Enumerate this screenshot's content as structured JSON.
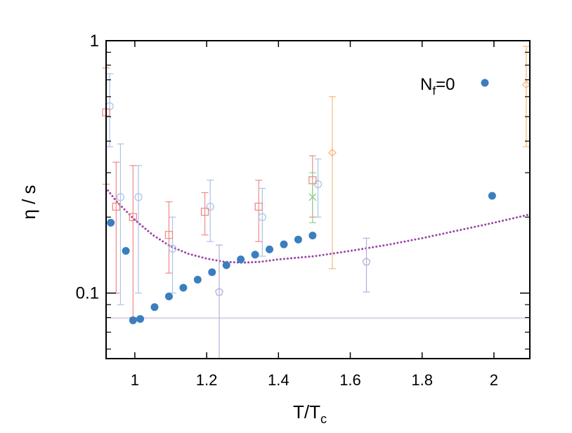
{
  "chart_data": {
    "type": "scatter",
    "xlabel": "T/T",
    "xlabel_sub": "c",
    "ylabel": "η / s",
    "xlim": [
      0.92,
      2.1
    ],
    "ylim": [
      0.055,
      1.0
    ],
    "yscale": "log",
    "x_ticks": [
      1,
      1.2,
      1.4,
      1.6,
      1.8,
      2
    ],
    "x_tick_labels": [
      "1",
      "1.2",
      "1.4",
      "1.6",
      "1.8",
      "2"
    ],
    "y_ticks": [
      0.1,
      1
    ],
    "y_tick_labels": [
      "0.1",
      "1"
    ],
    "legend": {
      "label_main": "N",
      "label_sub": "f",
      "label_rest": "=0",
      "position": "top-right"
    },
    "series": [
      {
        "name": "N_f=0",
        "marker": "filled-circle",
        "color": "#3a7ebf",
        "points": [
          [
            0.933,
            0.19
          ],
          [
            0.975,
            0.147
          ],
          [
            0.995,
            0.078
          ],
          [
            1.015,
            0.079
          ],
          [
            1.055,
            0.088
          ],
          [
            1.095,
            0.097
          ],
          [
            1.135,
            0.105
          ],
          [
            1.175,
            0.113
          ],
          [
            1.215,
            0.121
          ],
          [
            1.255,
            0.129
          ],
          [
            1.295,
            0.136
          ],
          [
            1.335,
            0.142
          ],
          [
            1.375,
            0.149
          ],
          [
            1.415,
            0.156
          ],
          [
            1.455,
            0.163
          ],
          [
            1.495,
            0.169
          ],
          [
            1.995,
            0.243
          ]
        ]
      },
      {
        "marker": "open-circle",
        "color": "#a8c4e6",
        "points": [
          [
            0.93,
            0.55,
            0.38,
            0.74
          ],
          [
            0.96,
            0.24,
            0.09,
            0.39
          ],
          [
            1.01,
            0.24,
            0.1,
            0.32
          ],
          [
            1.105,
            0.15,
            0.1,
            0.2
          ],
          [
            1.21,
            0.22,
            0.16,
            0.28
          ],
          [
            1.355,
            0.2,
            0.14,
            0.26
          ],
          [
            1.51,
            0.27,
            0.2,
            0.34
          ]
        ]
      },
      {
        "marker": "open-square",
        "color": "#f08a8a",
        "points": [
          [
            0.92,
            0.52,
            0.27,
            0.78
          ],
          [
            0.948,
            0.22,
            0.1,
            0.33
          ],
          [
            0.995,
            0.2,
            0.08,
            0.32
          ],
          [
            1.095,
            0.17,
            0.12,
            0.23
          ],
          [
            1.195,
            0.21,
            0.17,
            0.25
          ],
          [
            1.345,
            0.22,
            0.16,
            0.28
          ],
          [
            1.495,
            0.28,
            0.2,
            0.35
          ]
        ]
      },
      {
        "marker": "cross",
        "color": "#8ed08e",
        "points": [
          [
            1.495,
            0.24,
            0.19,
            0.3
          ]
        ]
      },
      {
        "marker": "open-diamond",
        "color": "#f5b87a",
        "points": [
          [
            1.55,
            0.36,
            0.125,
            0.6
          ],
          [
            2.09,
            0.67,
            0.38,
            0.95
          ]
        ]
      },
      {
        "marker": "open-pentagon",
        "color": "#b5aed8",
        "points": [
          [
            1.235,
            0.101,
            0.04,
            0.155
          ],
          [
            1.645,
            0.133,
            0.101,
            0.165
          ]
        ]
      },
      {
        "type": "dotted-curve",
        "color": "#9b45a8",
        "points": [
          [
            0.925,
            0.255
          ],
          [
            0.95,
            0.23
          ],
          [
            1.0,
            0.195
          ],
          [
            1.05,
            0.17
          ],
          [
            1.1,
            0.153
          ],
          [
            1.15,
            0.143
          ],
          [
            1.2,
            0.137
          ],
          [
            1.25,
            0.133
          ],
          [
            1.3,
            0.132
          ],
          [
            1.35,
            0.133
          ],
          [
            1.4,
            0.136
          ],
          [
            1.5,
            0.14
          ],
          [
            1.6,
            0.147
          ],
          [
            1.7,
            0.155
          ],
          [
            1.8,
            0.165
          ],
          [
            1.9,
            0.177
          ],
          [
            2.0,
            0.19
          ],
          [
            2.1,
            0.205
          ]
        ]
      },
      {
        "type": "horizontal-line",
        "color": "#e0dcea",
        "value": 0.0796
      }
    ]
  }
}
